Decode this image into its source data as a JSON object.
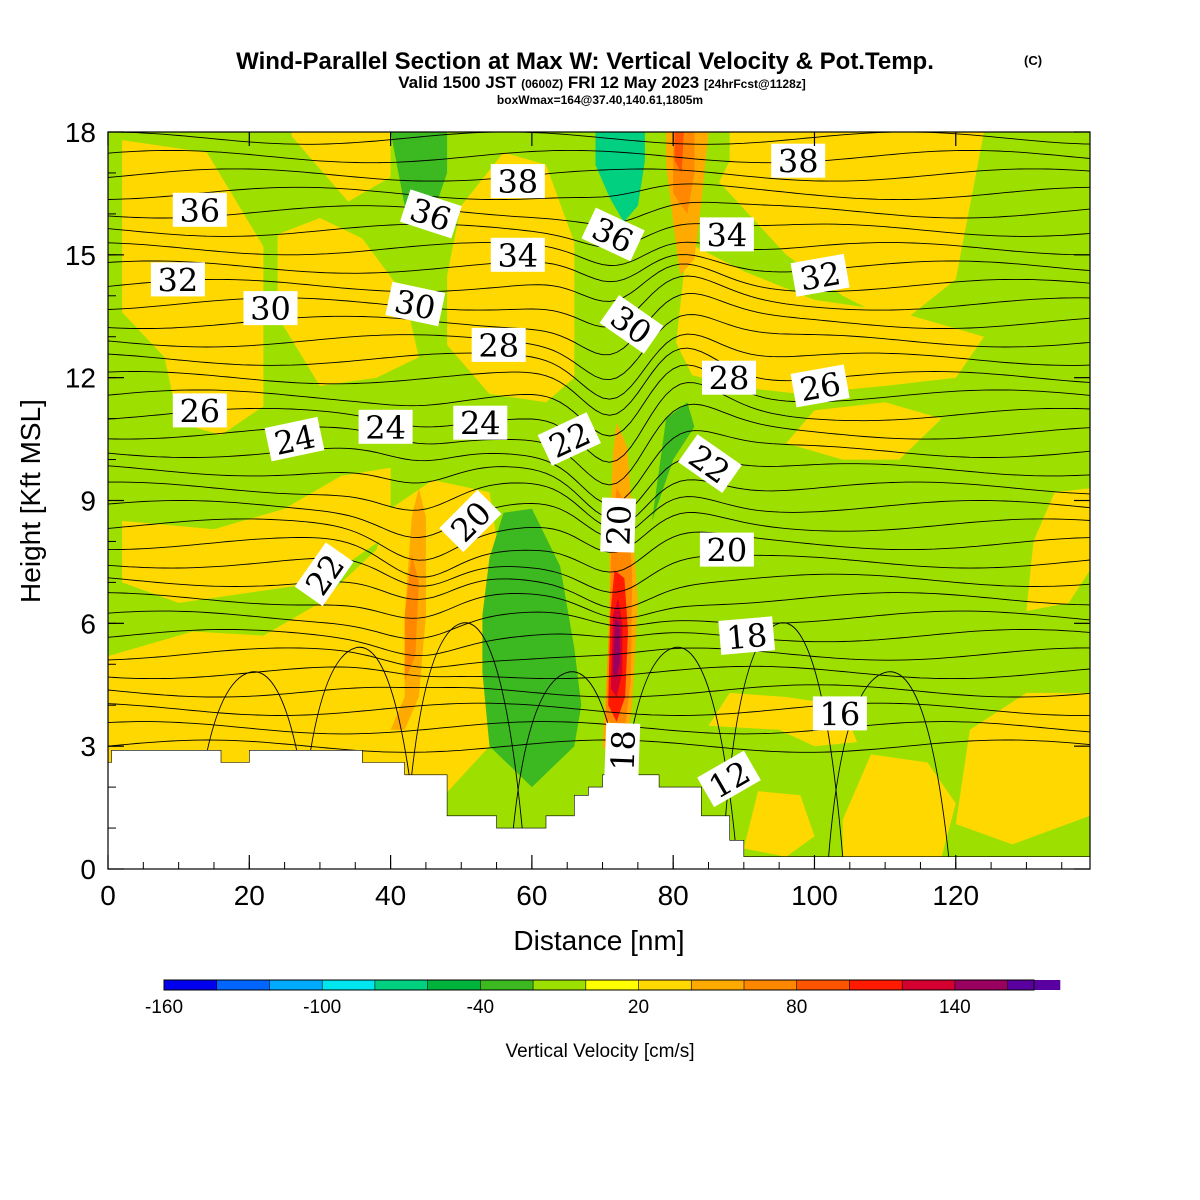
{
  "chart_data": {
    "type": "heatmap",
    "title": {
      "main": "Wind-Parallel Section at Max W: Vertical Velocity & Pot.Temp.",
      "copyright": "(C)",
      "valid_a": "Valid 1500 JST",
      "valid_z": "(0600Z)",
      "valid_b": "FRI 12 May 2023",
      "fcst": "[24hrFcst@1128z]",
      "subtitle": "boxWmax=164@37.40,140.61,1805m"
    },
    "xlabel": "Distance [nm]",
    "ylabel": "Height [Kft MSL]",
    "xlim": [
      0,
      139
    ],
    "ylim": [
      0,
      18
    ],
    "x_ticks": [
      "0",
      "20",
      "40",
      "60",
      "80",
      "100",
      "120"
    ],
    "y_ticks": [
      "0",
      "3",
      "6",
      "9",
      "12",
      "15",
      "18"
    ],
    "colorbar": {
      "label": "Vertical Velocity [cm/s]",
      "tick_labels": [
        "-160",
        "-100",
        "-40",
        "20",
        "80",
        "140"
      ],
      "tick_values": [
        -160,
        -100,
        -40,
        20,
        80,
        140
      ],
      "range": [
        -160,
        170
      ],
      "interval": 20,
      "colors": [
        "#0000ee",
        "#0066ff",
        "#00aaff",
        "#00e5ee",
        "#00d080",
        "#00b33c",
        "#3cb820",
        "#9de000",
        "#ffff00",
        "#ffd800",
        "#ffaa00",
        "#ff8800",
        "#ff5500",
        "#ff1a00",
        "#d40030",
        "#9a0060",
        "#5a00a0"
      ]
    },
    "theta_labels": [
      {
        "text": "36",
        "x": 13,
        "y": 16.1,
        "angle": 0
      },
      {
        "text": "36",
        "x": 45.7,
        "y": 16.0,
        "angle": 18
      },
      {
        "text": "38",
        "x": 58,
        "y": 16.8,
        "angle": 0
      },
      {
        "text": "36",
        "x": 71.5,
        "y": 15.5,
        "angle": 25
      },
      {
        "text": "34",
        "x": 58,
        "y": 15.0,
        "angle": 0
      },
      {
        "text": "34",
        "x": 87.6,
        "y": 15.5,
        "angle": 0
      },
      {
        "text": "38",
        "x": 97.7,
        "y": 17.3,
        "angle": 0
      },
      {
        "text": "32",
        "x": 9.9,
        "y": 14.4,
        "angle": 0
      },
      {
        "text": "30",
        "x": 23,
        "y": 13.7,
        "angle": 0
      },
      {
        "text": "30",
        "x": 43.5,
        "y": 13.8,
        "angle": 12
      },
      {
        "text": "28",
        "x": 55.3,
        "y": 12.8,
        "angle": 0
      },
      {
        "text": "30",
        "x": 74.1,
        "y": 13.3,
        "angle": 35
      },
      {
        "text": "32",
        "x": 100.8,
        "y": 14.5,
        "angle": -10
      },
      {
        "text": "28",
        "x": 87.9,
        "y": 12.0,
        "angle": 0
      },
      {
        "text": "26",
        "x": 100.8,
        "y": 11.8,
        "angle": -10
      },
      {
        "text": "26",
        "x": 13,
        "y": 11.2,
        "angle": 0
      },
      {
        "text": "24",
        "x": 26.4,
        "y": 10.5,
        "angle": -12
      },
      {
        "text": "24",
        "x": 39.3,
        "y": 10.8,
        "angle": 0
      },
      {
        "text": "24",
        "x": 52.7,
        "y": 10.9,
        "angle": 0
      },
      {
        "text": "22",
        "x": 65.3,
        "y": 10.5,
        "angle": -25
      },
      {
        "text": "22",
        "x": 85.2,
        "y": 9.9,
        "angle": 35
      },
      {
        "text": "20",
        "x": 51.3,
        "y": 8.5,
        "angle": -45
      },
      {
        "text": "20",
        "x": 72.2,
        "y": 8.4,
        "angle": -88
      },
      {
        "text": "20",
        "x": 87.6,
        "y": 7.8,
        "angle": 0
      },
      {
        "text": "22",
        "x": 30.6,
        "y": 7.2,
        "angle": -55
      },
      {
        "text": "18",
        "x": 90.4,
        "y": 5.7,
        "angle": -5
      },
      {
        "text": "16",
        "x": 103.6,
        "y": 3.8,
        "angle": 0
      },
      {
        "text": "18",
        "x": 72.8,
        "y": 2.9,
        "angle": -88
      },
      {
        "text": "12",
        "x": 87.9,
        "y": 2.2,
        "angle": -30
      }
    ]
  }
}
